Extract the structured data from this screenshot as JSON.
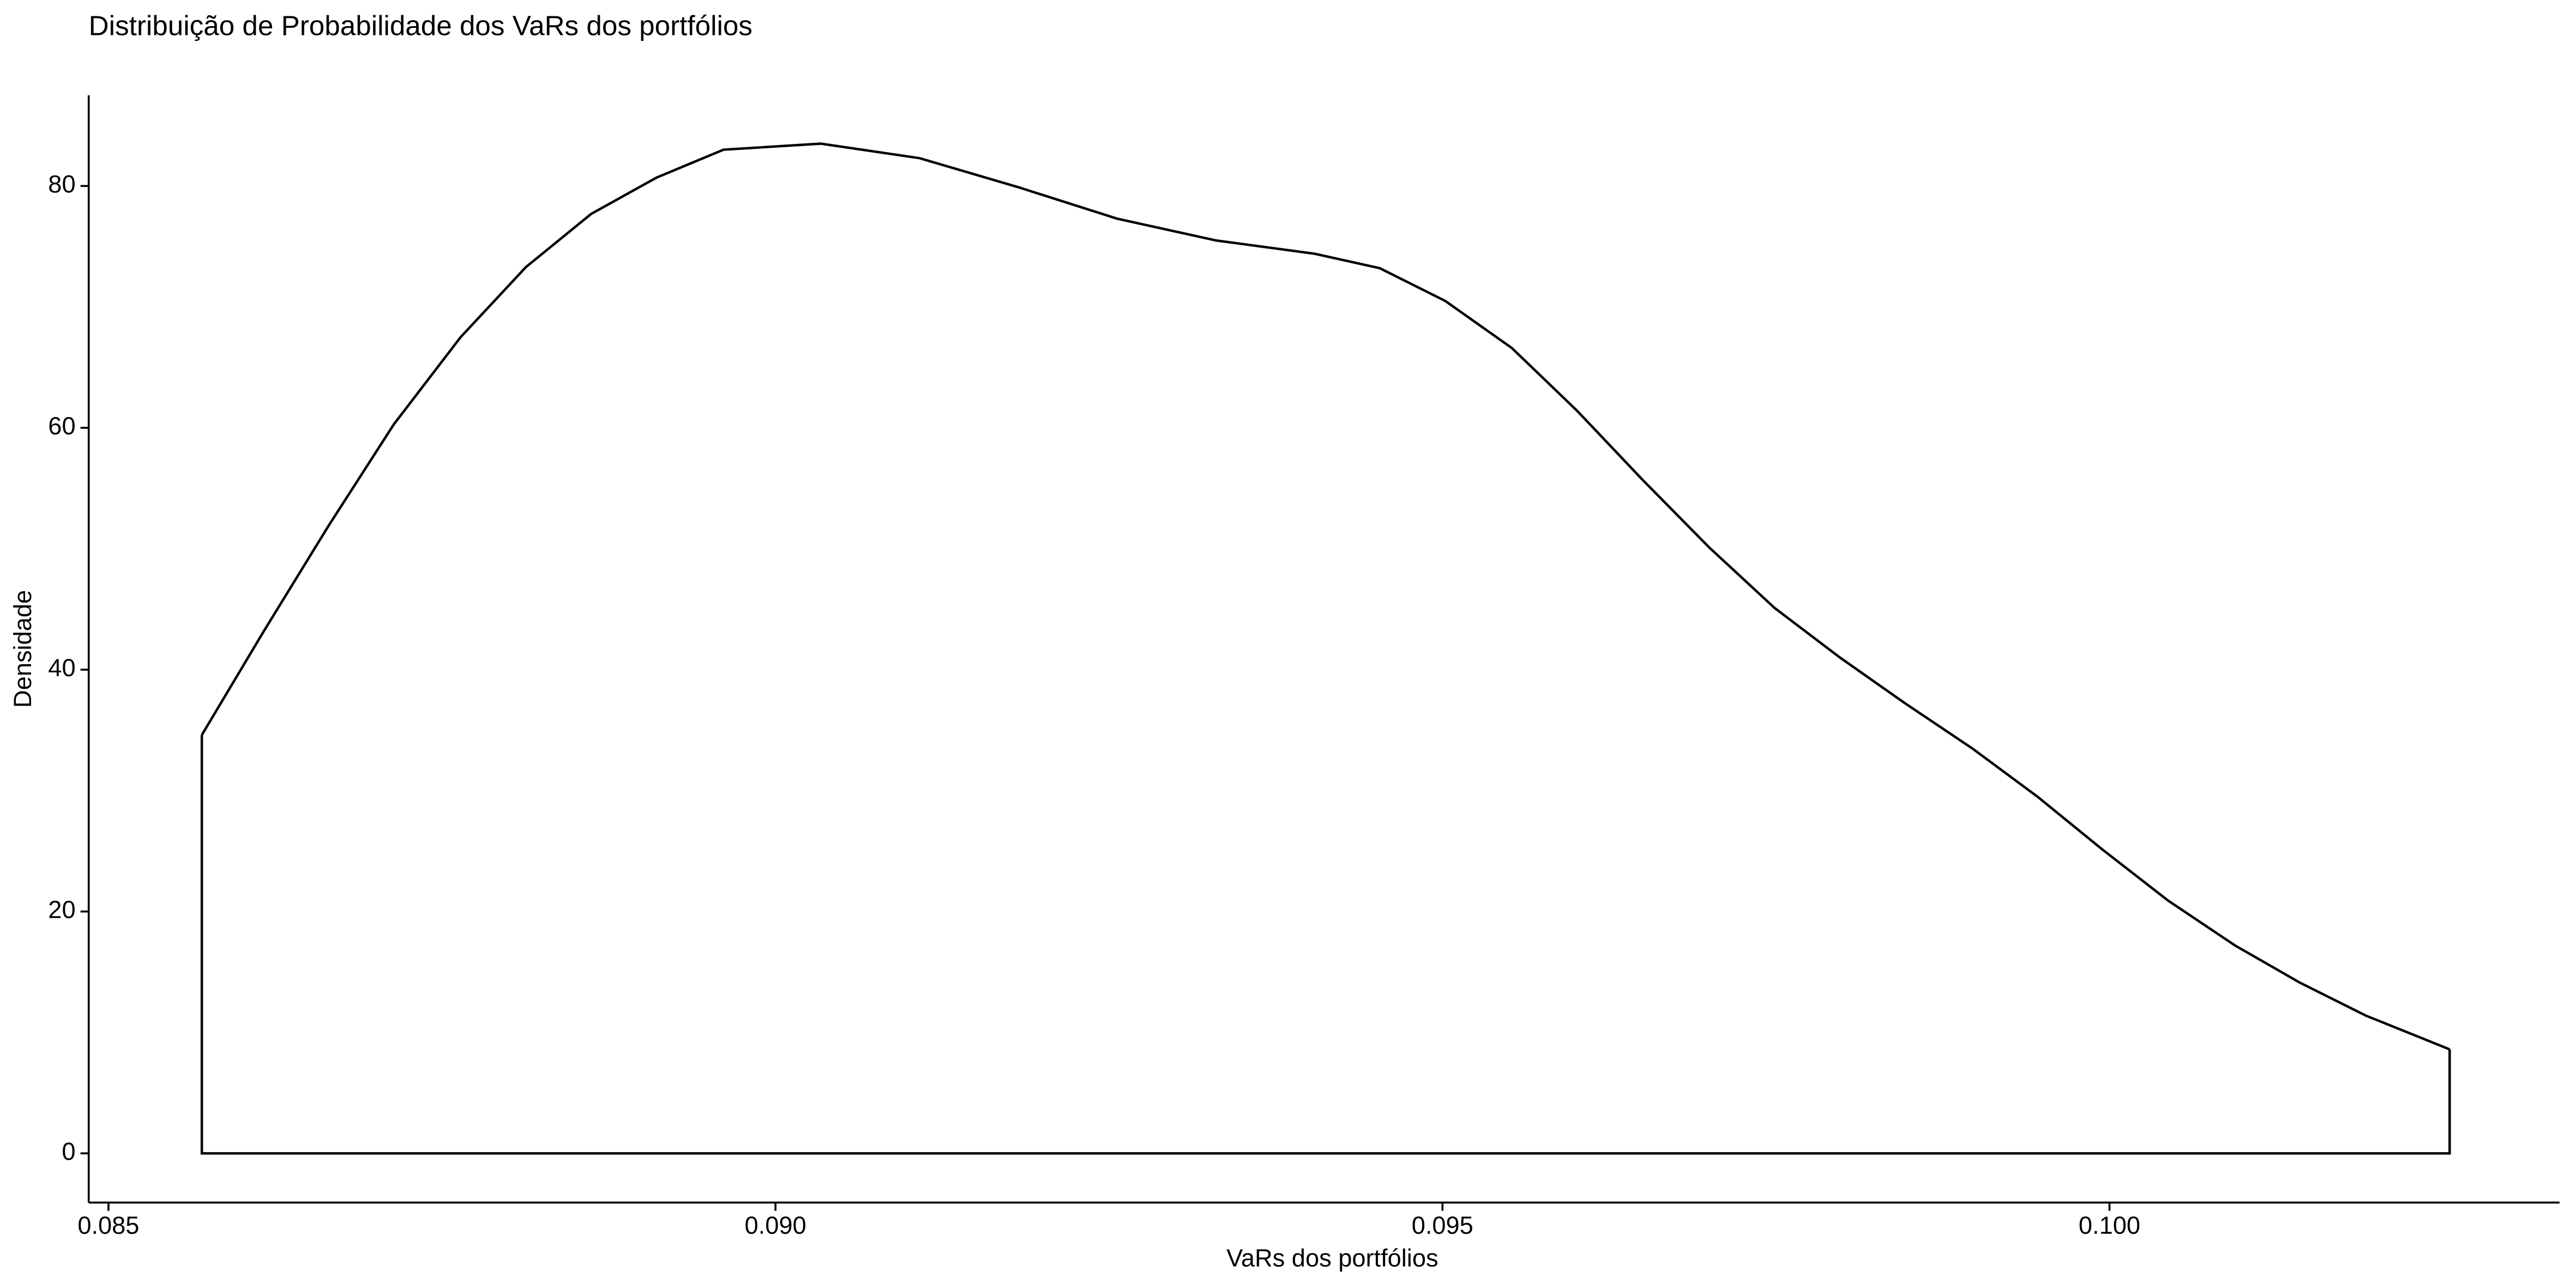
{
  "chart_data": {
    "type": "density",
    "title": "Distribuição de Probabilidade dos VaRs dos portfólios",
    "x_label": "VaRs dos portfólios",
    "y_label": "Densidade",
    "color": "#000000",
    "x": [
      0.0857,
      0.08616,
      0.08665,
      0.08714,
      0.08764,
      0.08813,
      0.08862,
      0.08911,
      0.08961,
      0.09034,
      0.09108,
      0.09182,
      0.09256,
      0.0933,
      0.09404,
      0.09453,
      0.09502,
      0.09552,
      0.09601,
      0.0965,
      0.097,
      0.09749,
      0.09798,
      0.09847,
      0.09897,
      0.09946,
      0.09995,
      0.10044,
      0.10094,
      0.10143,
      0.10192,
      0.10255
    ],
    "values": [
      34.6,
      43.1,
      51.9,
      60.3,
      67.5,
      73.3,
      77.7,
      80.7,
      83.0,
      83.5,
      82.3,
      79.9,
      77.3,
      75.5,
      74.4,
      73.2,
      70.5,
      66.6,
      61.4,
      55.7,
      50.1,
      45.1,
      41.0,
      37.2,
      33.5,
      29.5,
      25.1,
      20.9,
      17.2,
      14.1,
      11.4,
      8.6
    ],
    "xlim": [
      0.084852,
      0.103374
    ],
    "ylim": [
      -4.07,
      87.5
    ],
    "xticks": [
      0.085,
      {
        "value": 0.09,
        "label": "0.090"
      },
      0.095,
      {
        "value": 0.1,
        "label": "0.100"
      }
    ],
    "yticks": [
      0,
      20,
      40,
      60,
      80
    ]
  }
}
